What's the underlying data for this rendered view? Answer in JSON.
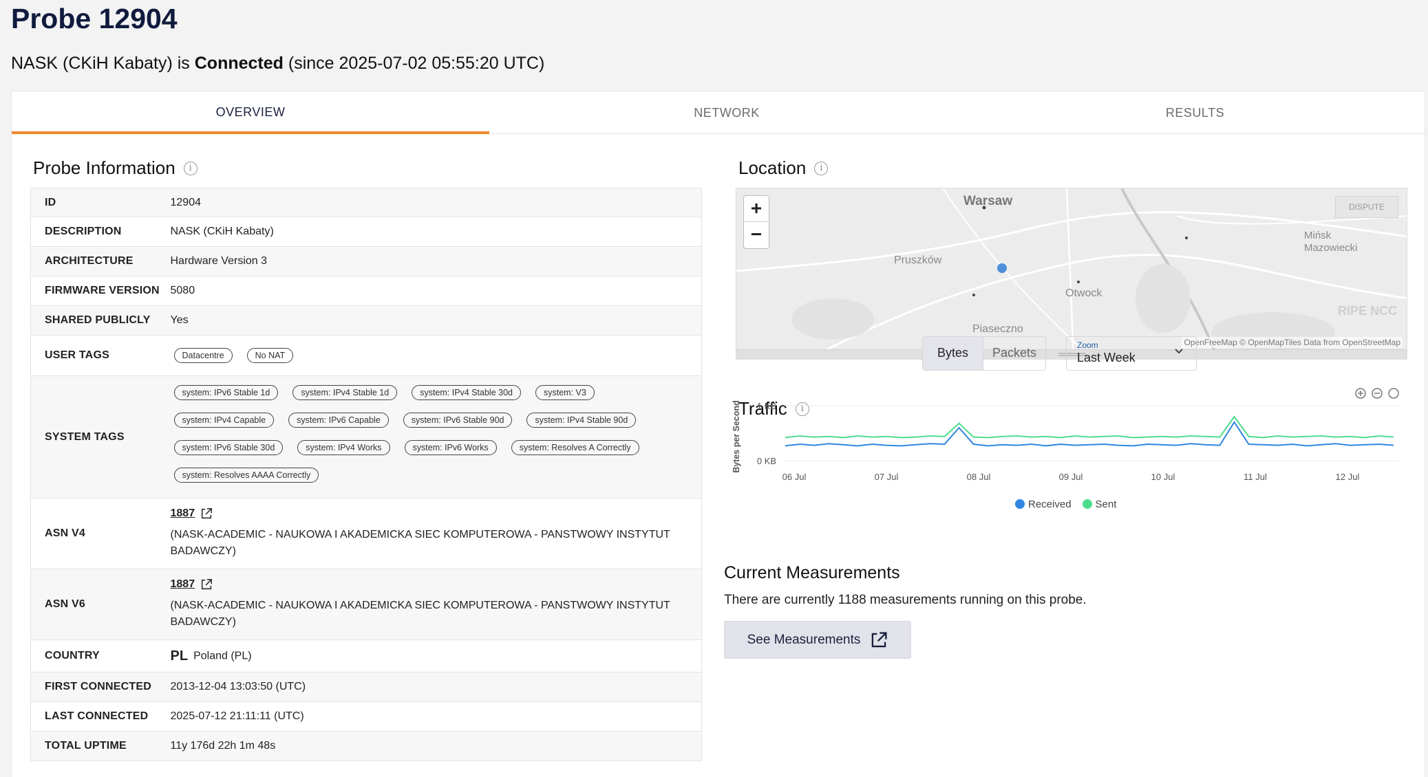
{
  "header": {
    "title": "Probe 12904",
    "status_prefix": "NASK (CKiH Kabaty) is ",
    "status_word": "Connected",
    "status_suffix": " (since 2025-07-02 05:55:20 UTC)"
  },
  "tabs": [
    {
      "label": "OVERVIEW",
      "active": true
    },
    {
      "label": "NETWORK",
      "active": false
    },
    {
      "label": "RESULTS",
      "active": false
    }
  ],
  "probe_info": {
    "title": "Probe Information",
    "rows": {
      "id": {
        "key": "ID",
        "value": "12904"
      },
      "description": {
        "key": "DESCRIPTION",
        "value": "NASK (CKiH Kabaty)"
      },
      "architecture": {
        "key": "ARCHITECTURE",
        "value": "Hardware Version 3"
      },
      "firmware": {
        "key": "FIRMWARE VERSION",
        "value": "5080"
      },
      "shared": {
        "key": "SHARED PUBLICLY",
        "value": "Yes"
      },
      "user_tags": {
        "key": "USER TAGS",
        "tags": [
          "Datacentre",
          "No NAT"
        ]
      },
      "system_tags": {
        "key": "SYSTEM TAGS",
        "tags": [
          "system: IPv6 Stable 1d",
          "system: IPv4 Stable 1d",
          "system: IPv4 Stable 30d",
          "system: V3",
          "system: IPv4 Capable",
          "system: IPv6 Capable",
          "system: IPv6 Stable 90d",
          "system: IPv4 Stable 90d",
          "system: IPv6 Stable 30d",
          "system: IPv4 Works",
          "system: IPv6 Works",
          "system: Resolves A Correctly",
          "system: Resolves AAAA Correctly"
        ]
      },
      "asn_v4": {
        "key": "ASN V4",
        "number": "1887",
        "desc": "(NASK-ACADEMIC - NAUKOWA I AKADEMICKA SIEC KOMPUTEROWA - PANSTWOWY INSTYTUT BADAWCZY)"
      },
      "asn_v6": {
        "key": "ASN V6",
        "number": "1887",
        "desc": "(NASK-ACADEMIC - NAUKOWA I AKADEMICKA SIEC KOMPUTEROWA - PANSTWOWY INSTYTUT BADAWCZY)"
      },
      "country": {
        "key": "COUNTRY",
        "code": "PL",
        "value": "Poland (PL)"
      },
      "first_connected": {
        "key": "FIRST CONNECTED",
        "value": "2013-12-04 13:03:50 (UTC)"
      },
      "last_connected": {
        "key": "LAST CONNECTED",
        "value": "2025-07-12 21:11:11 (UTC)"
      },
      "uptime": {
        "key": "TOTAL UPTIME",
        "value": "11y 176d 22h 1m 48s"
      }
    }
  },
  "location": {
    "title": "Location",
    "dispute_label": "DISPUTE",
    "zoom_in": "+",
    "zoom_out": "−",
    "places": {
      "warsaw": "Warsaw",
      "pruszkow": "Pruszków",
      "minsk": "Mińsk\nMazowiecki",
      "otwock": "Otwock",
      "piaseczno": "Piaseczno"
    },
    "watermark": "RIPE NCC",
    "attribution": "OpenFreeMap © OpenMapTiles Data from OpenStreetMap"
  },
  "traffic": {
    "title": "Traffic",
    "toggle": [
      "Bytes",
      "Packets"
    ],
    "zoom_label": "Zoom",
    "zoom_value": "Last Week",
    "ylabel": "Bytes per Second",
    "legend": [
      "Received",
      "Sent"
    ],
    "colors": {
      "received": "#2f86e0",
      "sent": "#4fdc8e"
    }
  },
  "chart_data": {
    "type": "line",
    "ylabel": "Bytes per Second",
    "y_ticks": [
      "0 KB",
      "1 KB"
    ],
    "x_ticks": [
      "06 Jul",
      "07 Jul",
      "08 Jul",
      "09 Jul",
      "10 Jul",
      "11 Jul",
      "12 Jul"
    ],
    "ylim": [
      0,
      1
    ],
    "series": [
      {
        "name": "Received",
        "color": "#2f86e0",
        "values": [
          0.27,
          0.3,
          0.28,
          0.31,
          0.29,
          0.27,
          0.3,
          0.28,
          0.27,
          0.29,
          0.31,
          0.3,
          0.6,
          0.3,
          0.27,
          0.29,
          0.28,
          0.3,
          0.27,
          0.3,
          0.28,
          0.29,
          0.3,
          0.28,
          0.27,
          0.3,
          0.29,
          0.28,
          0.31,
          0.29,
          0.28,
          0.7,
          0.3,
          0.29,
          0.28,
          0.3,
          0.27,
          0.29,
          0.31,
          0.28,
          0.29,
          0.3,
          0.28
        ]
      },
      {
        "name": "Sent",
        "color": "#4fdc8e",
        "values": [
          0.42,
          0.45,
          0.43,
          0.44,
          0.42,
          0.45,
          0.43,
          0.44,
          0.42,
          0.43,
          0.45,
          0.44,
          0.68,
          0.43,
          0.42,
          0.44,
          0.45,
          0.43,
          0.44,
          0.42,
          0.45,
          0.43,
          0.44,
          0.45,
          0.42,
          0.43,
          0.44,
          0.43,
          0.45,
          0.44,
          0.43,
          0.8,
          0.44,
          0.42,
          0.45,
          0.43,
          0.44,
          0.45,
          0.43,
          0.44,
          0.42,
          0.45,
          0.43
        ]
      }
    ]
  },
  "measurements": {
    "title": "Current Measurements",
    "text": "There are currently 1188 measurements running on this probe.",
    "button": "See Measurements"
  }
}
